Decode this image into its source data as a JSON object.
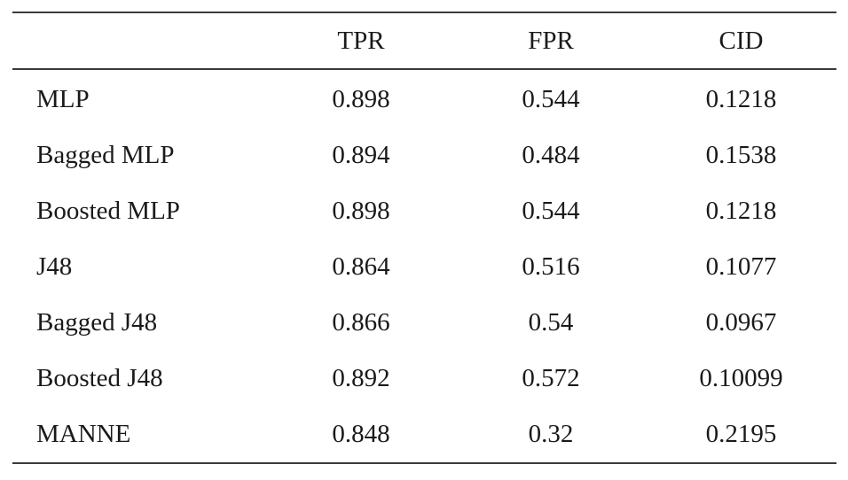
{
  "table": {
    "headers": [
      "",
      "TPR",
      "FPR",
      "CID"
    ],
    "rows": [
      [
        "MLP",
        "0.898",
        "0.544",
        "0.1218"
      ],
      [
        "Bagged MLP",
        "0.894",
        "0.484",
        "0.1538"
      ],
      [
        "Boosted MLP",
        "0.898",
        "0.544",
        "0.1218"
      ],
      [
        "J48",
        "0.864",
        "0.516",
        "0.1077"
      ],
      [
        "Bagged J48",
        "0.866",
        "0.54",
        "0.0967"
      ],
      [
        "Boosted J48",
        "0.892",
        "0.572",
        "0.10099"
      ],
      [
        "MANNE",
        "0.848",
        "0.32",
        "0.2195"
      ]
    ]
  }
}
